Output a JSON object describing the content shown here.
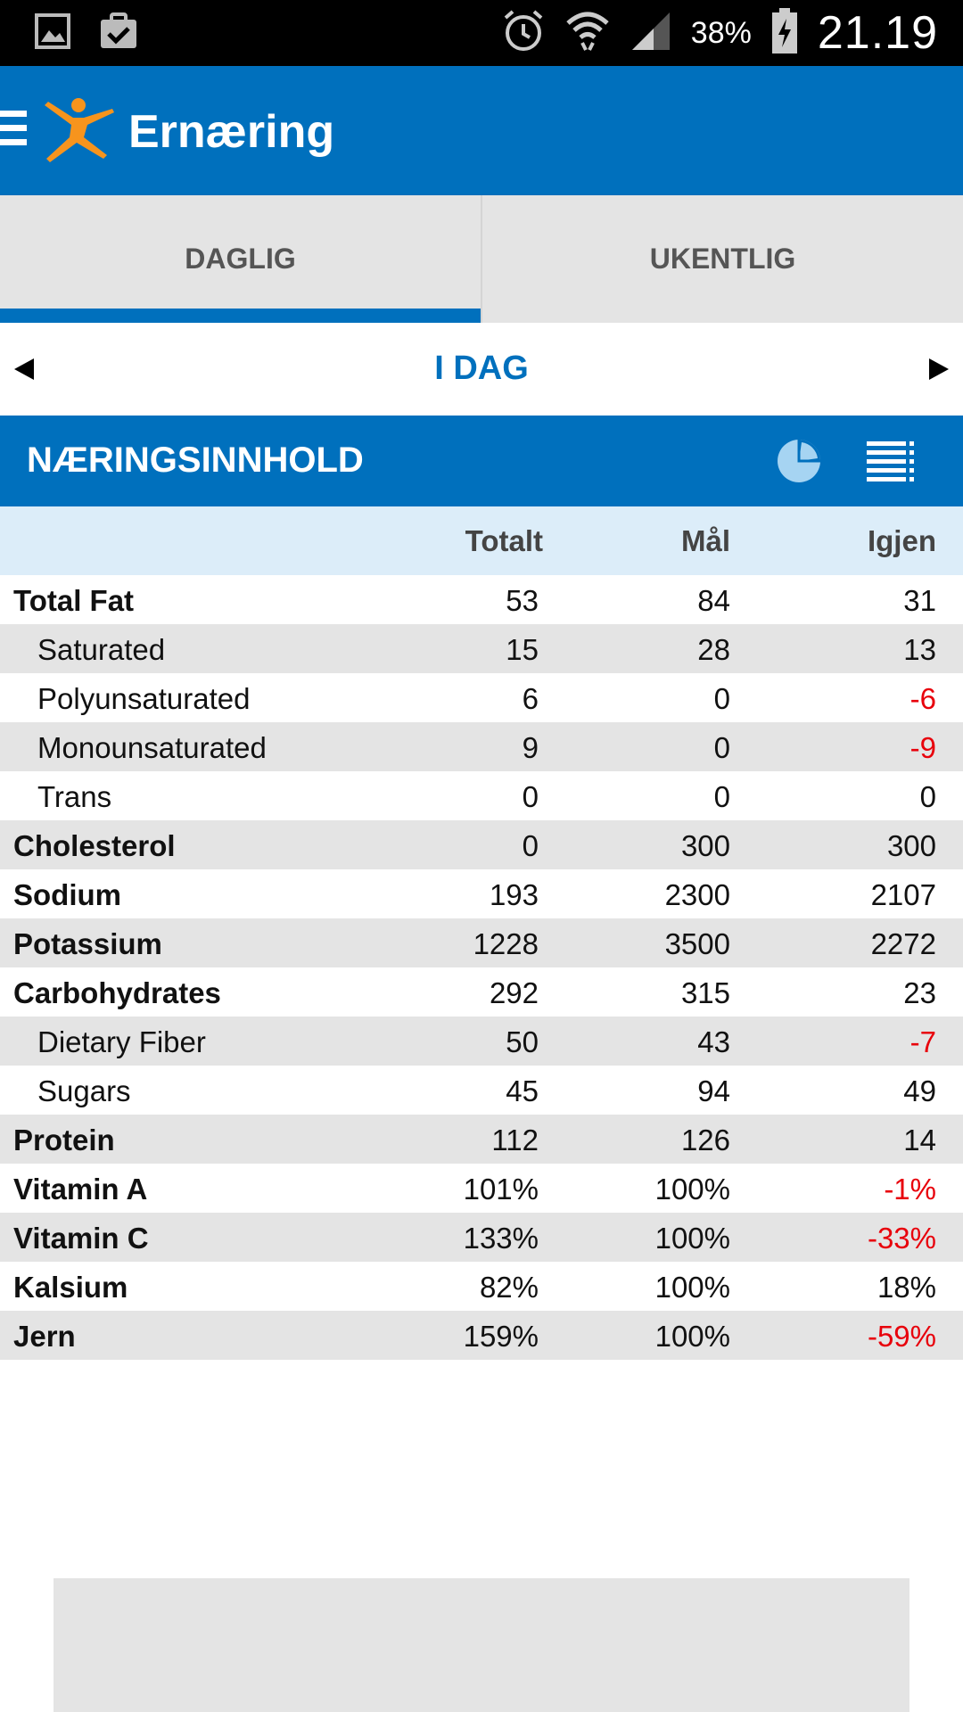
{
  "status_bar": {
    "icons": [
      "gallery-icon",
      "clipboard-check-icon",
      "alarm-icon",
      "wifi-icon",
      "signal-icon",
      "battery-charging-icon"
    ],
    "battery_percent": "38%",
    "time": "21.19"
  },
  "app_bar": {
    "title": "Ernæring",
    "menu_icon": "hamburger-menu-icon",
    "logo_icon": "myfitnesspal-runner-logo"
  },
  "tabs": [
    {
      "label": "DAGLIG",
      "active": true
    },
    {
      "label": "UKENTLIG",
      "active": false
    }
  ],
  "date_nav": {
    "label": "I DAG",
    "prev_icon": "left-arrow-icon",
    "next_icon": "right-arrow-icon"
  },
  "section": {
    "title": "NÆRINGSINNHOLD",
    "pie_icon": "pie-chart-icon",
    "list_icon": "list-icon"
  },
  "table": {
    "headers": {
      "total": "Totalt",
      "goal": "Mål",
      "remaining": "Igjen"
    },
    "rows": [
      {
        "name": "Total Fat",
        "total": "53",
        "goal": "84",
        "remaining": "31",
        "sub": false,
        "negative": false
      },
      {
        "name": "Saturated",
        "total": "15",
        "goal": "28",
        "remaining": "13",
        "sub": true,
        "negative": false
      },
      {
        "name": "Polyunsaturated",
        "total": "6",
        "goal": "0",
        "remaining": "-6",
        "sub": true,
        "negative": true
      },
      {
        "name": "Monounsaturated",
        "total": "9",
        "goal": "0",
        "remaining": "-9",
        "sub": true,
        "negative": true
      },
      {
        "name": "Trans",
        "total": "0",
        "goal": "0",
        "remaining": "0",
        "sub": true,
        "negative": false
      },
      {
        "name": "Cholesterol",
        "total": "0",
        "goal": "300",
        "remaining": "300",
        "sub": false,
        "negative": false
      },
      {
        "name": "Sodium",
        "total": "193",
        "goal": "2300",
        "remaining": "2107",
        "sub": false,
        "negative": false
      },
      {
        "name": "Potassium",
        "total": "1228",
        "goal": "3500",
        "remaining": "2272",
        "sub": false,
        "negative": false
      },
      {
        "name": "Carbohydrates",
        "total": "292",
        "goal": "315",
        "remaining": "23",
        "sub": false,
        "negative": false
      },
      {
        "name": "Dietary Fiber",
        "total": "50",
        "goal": "43",
        "remaining": "-7",
        "sub": true,
        "negative": true
      },
      {
        "name": "Sugars",
        "total": "45",
        "goal": "94",
        "remaining": "49",
        "sub": true,
        "negative": false
      },
      {
        "name": "Protein",
        "total": "112",
        "goal": "126",
        "remaining": "14",
        "sub": false,
        "negative": false
      },
      {
        "name": "Vitamin A",
        "total": "101%",
        "goal": "100%",
        "remaining": "-1%",
        "sub": false,
        "negative": true
      },
      {
        "name": "Vitamin C",
        "total": "133%",
        "goal": "100%",
        "remaining": "-33%",
        "sub": false,
        "negative": true
      },
      {
        "name": "Kalsium",
        "total": "82%",
        "goal": "100%",
        "remaining": "18%",
        "sub": false,
        "negative": false
      },
      {
        "name": "Jern",
        "total": "159%",
        "goal": "100%",
        "remaining": "-59%",
        "sub": false,
        "negative": true
      }
    ]
  },
  "colors": {
    "brand_blue": "#0070bd",
    "negative_red": "#e8000b",
    "header_light_blue": "#dcedf9",
    "logo_orange": "#f7941d"
  }
}
